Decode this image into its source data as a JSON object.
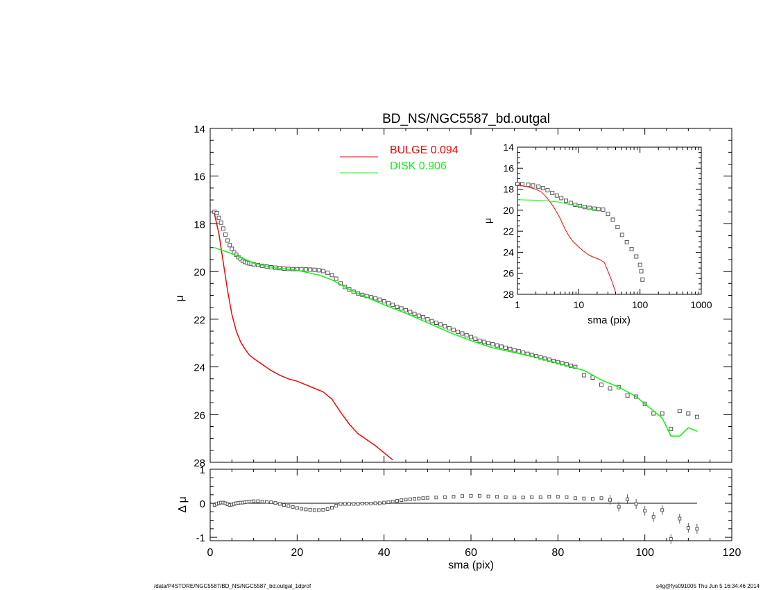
{
  "chart_data": [
    {
      "type": "line",
      "title": "BD_NS/NGC5587_bd.outgal",
      "xlabel": "",
      "ylabel": "μ",
      "xlim": [
        0,
        120
      ],
      "ylim": [
        28,
        14
      ],
      "yticks": [
        14,
        16,
        18,
        20,
        22,
        24,
        26,
        28
      ],
      "ytick_labels": [
        "14",
        "16",
        "18",
        "20",
        "22",
        "24",
        "26",
        "28"
      ],
      "legend": {
        "placement": "top-center",
        "entries": [
          {
            "label": "BULGE  0.094",
            "color": "#ff0000"
          },
          {
            "label": "DISK  0.906",
            "color": "#00ff00"
          }
        ]
      },
      "series": [
        {
          "name": "data",
          "style": "square-markers",
          "x": [
            1,
            1.5,
            2,
            2.5,
            3,
            3.5,
            4,
            4.5,
            5,
            5.5,
            6,
            6.5,
            7,
            7.5,
            8,
            8.5,
            9,
            9.5,
            10,
            11,
            12,
            13,
            14,
            15,
            16,
            17,
            18,
            19,
            20,
            21,
            22,
            23,
            24,
            25,
            26,
            27,
            28,
            29,
            30,
            31,
            32,
            33,
            34,
            35,
            36,
            37,
            38,
            39,
            40,
            41,
            42,
            43,
            44,
            45,
            46,
            47,
            48,
            49,
            50,
            51,
            52,
            53,
            54,
            55,
            56,
            57,
            58,
            59,
            60,
            61,
            62,
            63,
            64,
            65,
            66,
            67,
            68,
            69,
            70,
            71,
            72,
            73,
            74,
            75,
            76,
            77,
            78,
            79,
            80,
            81,
            82,
            83,
            84,
            86,
            88,
            90,
            92,
            94,
            96,
            98,
            100,
            102,
            104,
            106,
            108,
            110,
            112
          ],
          "y": [
            17.5,
            17.55,
            17.75,
            17.95,
            18.2,
            18.45,
            18.7,
            18.9,
            19.05,
            19.2,
            19.3,
            19.4,
            19.48,
            19.55,
            19.6,
            19.63,
            19.66,
            19.68,
            19.7,
            19.73,
            19.76,
            19.79,
            19.82,
            19.84,
            19.86,
            19.88,
            19.89,
            19.9,
            19.9,
            19.9,
            19.91,
            19.92,
            19.93,
            19.95,
            19.98,
            20.05,
            20.15,
            20.3,
            20.5,
            20.65,
            20.75,
            20.85,
            20.92,
            20.98,
            21.03,
            21.08,
            21.12,
            21.18,
            21.25,
            21.33,
            21.4,
            21.48,
            21.55,
            21.62,
            21.7,
            21.78,
            21.85,
            21.92,
            22,
            22.08,
            22.15,
            22.22,
            22.3,
            22.38,
            22.45,
            22.53,
            22.6,
            22.68,
            22.75,
            22.82,
            22.9,
            22.95,
            23,
            23.05,
            23.1,
            23.15,
            23.2,
            23.25,
            23.3,
            23.35,
            23.4,
            23.45,
            23.5,
            23.55,
            23.6,
            23.65,
            23.7,
            23.75,
            23.8,
            23.85,
            23.9,
            23.95,
            24,
            24.35,
            24.45,
            24.75,
            24.9,
            24.85,
            25.2,
            25.25,
            25.55,
            25.95,
            25.95,
            26.6,
            25.85,
            25.95,
            26.1
          ]
        },
        {
          "name": "bulge",
          "color": "#ff0000",
          "x": [
            1,
            2,
            3,
            4,
            5,
            6,
            7,
            8,
            9,
            10,
            12,
            14,
            16,
            18,
            20,
            22,
            24,
            26,
            28,
            30,
            32,
            34,
            36,
            38,
            40,
            42
          ],
          "y": [
            17.6,
            18.4,
            19.6,
            20.8,
            21.8,
            22.5,
            22.95,
            23.25,
            23.5,
            23.65,
            23.9,
            24.15,
            24.35,
            24.5,
            24.6,
            24.75,
            24.9,
            25.05,
            25.35,
            25.9,
            26.4,
            26.8,
            27.05,
            27.3,
            27.6,
            27.9
          ]
        },
        {
          "name": "disk",
          "color": "#00ff00",
          "x": [
            1,
            5,
            10,
            15,
            20,
            25,
            28,
            30,
            32,
            35,
            40,
            45,
            50,
            55,
            60,
            65,
            70,
            75,
            78,
            80,
            82,
            84,
            86,
            88,
            90,
            92,
            94,
            96,
            98,
            100,
            102,
            104,
            106,
            108,
            110,
            112
          ],
          "y": [
            19,
            19.25,
            19.65,
            19.85,
            19.95,
            20.15,
            20.35,
            20.55,
            20.75,
            21,
            21.4,
            21.75,
            22.15,
            22.55,
            22.9,
            23.2,
            23.4,
            23.6,
            23.75,
            23.85,
            23.95,
            24.05,
            24.15,
            24.35,
            24.55,
            24.7,
            24.85,
            25.05,
            25.25,
            25.55,
            25.85,
            26.15,
            26.9,
            26.9,
            26.55,
            26.7
          ]
        }
      ]
    },
    {
      "type": "line",
      "title": "",
      "xlabel": "sma (pix)",
      "ylabel": "μ",
      "xscale": "log",
      "xlim": [
        1,
        1000
      ],
      "ylim": [
        28,
        14
      ],
      "xticks": [
        1,
        10,
        100,
        1000
      ],
      "xtick_labels": [
        "1",
        "10",
        "100",
        "1000"
      ],
      "yticks": [
        14,
        16,
        18,
        20,
        22,
        24,
        26,
        28
      ],
      "ytick_labels": [
        "14",
        "16",
        "18",
        "20",
        "22",
        "24",
        "26",
        "28"
      ],
      "series": [
        {
          "name": "data",
          "style": "square-markers",
          "x": [
            1,
            1.2,
            1.5,
            1.8,
            2.2,
            2.6,
            3.1,
            3.7,
            4.4,
            5.2,
            6.2,
            7.4,
            8.8,
            10.5,
            12.5,
            15,
            18,
            21,
            25,
            30,
            36,
            43,
            51,
            61,
            73,
            87,
            100,
            105,
            110
          ],
          "y": [
            17.5,
            17.52,
            17.58,
            17.65,
            17.75,
            17.9,
            18.1,
            18.35,
            18.6,
            18.85,
            19.1,
            19.3,
            19.48,
            19.6,
            19.7,
            19.78,
            19.85,
            19.9,
            19.95,
            20.35,
            20.9,
            21.6,
            22.35,
            23.05,
            23.7,
            24.4,
            25.2,
            25.8,
            26.6
          ]
        },
        {
          "name": "bulge",
          "color": "#ff0000",
          "x": [
            1,
            1.5,
            2,
            2.5,
            3,
            3.5,
            4,
            5,
            6,
            7,
            8,
            10,
            12,
            15,
            18,
            22,
            26,
            30,
            35,
            40
          ],
          "y": [
            17.6,
            17.8,
            18.0,
            18.3,
            18.8,
            19.3,
            19.8,
            20.8,
            21.8,
            22.5,
            22.95,
            23.5,
            23.9,
            24.3,
            24.5,
            24.7,
            24.95,
            25.8,
            26.8,
            27.8
          ]
        },
        {
          "name": "disk",
          "color": "#00ff00",
          "x": [
            1,
            2,
            3,
            5,
            7,
            10,
            15,
            20
          ],
          "y": [
            19.0,
            19.05,
            19.1,
            19.25,
            19.45,
            19.65,
            19.82,
            19.95
          ]
        }
      ]
    },
    {
      "type": "scatter",
      "title": "",
      "xlabel": "sma (pix)",
      "ylabel": "Δ μ",
      "xlim": [
        0,
        120
      ],
      "ylim": [
        -1.1,
        1
      ],
      "xticks": [
        0,
        20,
        40,
        60,
        80,
        100,
        120
      ],
      "xtick_labels": [
        "0",
        "20",
        "40",
        "60",
        "80",
        "100",
        "120"
      ],
      "yticks": [
        -1,
        0,
        1
      ],
      "ytick_labels": [
        "-1",
        "0",
        "1"
      ],
      "series": [
        {
          "name": "residual",
          "style": "square-markers",
          "x": [
            1,
            1.5,
            2,
            2.5,
            3,
            3.5,
            4,
            4.5,
            5,
            5.5,
            6,
            6.5,
            7,
            7.5,
            8,
            8.5,
            9,
            9.5,
            10,
            11,
            12,
            13,
            14,
            15,
            16,
            17,
            18,
            19,
            20,
            21,
            22,
            23,
            24,
            25,
            26,
            27,
            28,
            29,
            30,
            31,
            32,
            33,
            34,
            35,
            36,
            37,
            38,
            39,
            40,
            41,
            42,
            43,
            44,
            45,
            46,
            47,
            48,
            49,
            50,
            52,
            54,
            56,
            58,
            60,
            62,
            64,
            66,
            68,
            70,
            72,
            74,
            76,
            78,
            80,
            82,
            84,
            86,
            88,
            90,
            92,
            94,
            96,
            98,
            100,
            102,
            104,
            106,
            108,
            110,
            112
          ],
          "y": [
            -0.05,
            -0.02,
            0,
            0.02,
            0.02,
            0,
            -0.03,
            -0.05,
            -0.04,
            -0.02,
            0,
            0.01,
            0.02,
            0.02,
            0.03,
            0.04,
            0.05,
            0.05,
            0.06,
            0.06,
            0.05,
            0.04,
            0.03,
            0.01,
            -0.02,
            -0.05,
            -0.08,
            -0.11,
            -0.14,
            -0.16,
            -0.18,
            -0.19,
            -0.2,
            -0.2,
            -0.19,
            -0.17,
            -0.13,
            -0.07,
            -0.02,
            -0.02,
            -0.02,
            -0.02,
            -0.02,
            -0.01,
            -0.01,
            -0.01,
            0,
            0,
            0.02,
            0.03,
            0.05,
            0.07,
            0.09,
            0.11,
            0.12,
            0.13,
            0.14,
            0.15,
            0.16,
            0.17,
            0.18,
            0.19,
            0.21,
            0.22,
            0.22,
            0.2,
            0.19,
            0.18,
            0.17,
            0.17,
            0.18,
            0.18,
            0.19,
            0.19,
            0.18,
            0.15,
            0.14,
            0.13,
            0.15,
            0.1,
            -0.1,
            0.12,
            -0.02,
            -0.22,
            -0.4,
            -0.2,
            -1.05,
            -0.45,
            -0.72,
            -0.75
          ]
        }
      ]
    }
  ],
  "footer": {
    "left": "/data/P4STORE/NGC5587/BD_NS/NGC5587_bd.outgal_1dprof",
    "right": "s4g@fys091005  Thu Jun  5 16:34:46 2014"
  }
}
